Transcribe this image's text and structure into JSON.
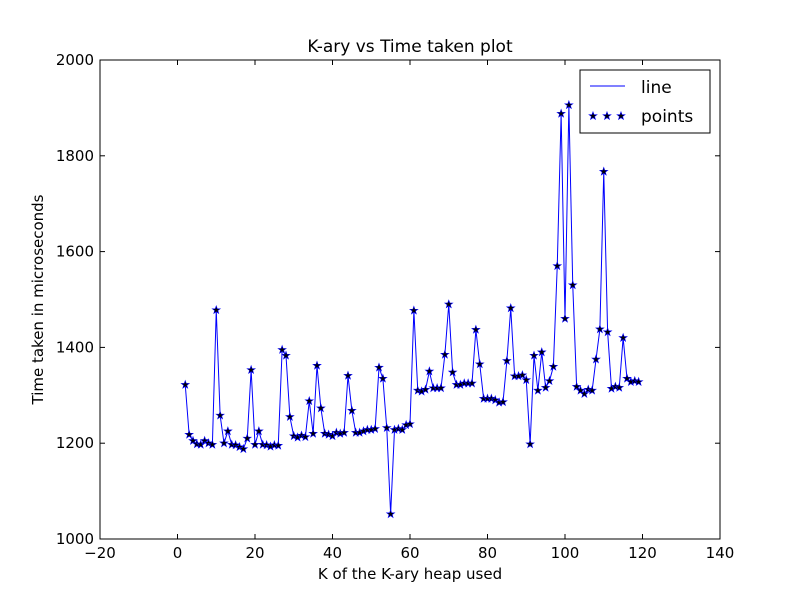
{
  "chart_data": {
    "type": "line",
    "title": "K-ary vs Time taken plot",
    "xlabel": "K of the K-ary heap used",
    "ylabel": "Time taken in microseconds",
    "xlim": [
      -20,
      140
    ],
    "ylim": [
      1000,
      2000
    ],
    "xticks": [
      "−20",
      "0",
      "20",
      "40",
      "60",
      "80",
      "100",
      "120",
      "140"
    ],
    "yticks": [
      "1000",
      "1200",
      "1400",
      "1600",
      "1800",
      "2000"
    ],
    "grid": false,
    "legend_position": "top-right",
    "legend": {
      "line": "line",
      "points": "points"
    },
    "line_color": "#0000ff",
    "marker_color": "#000000",
    "x": [
      2,
      3,
      4,
      5,
      6,
      7,
      8,
      9,
      10,
      11,
      12,
      13,
      14,
      15,
      16,
      17,
      18,
      19,
      20,
      21,
      22,
      23,
      24,
      25,
      26,
      27,
      28,
      29,
      30,
      31,
      32,
      33,
      34,
      35,
      36,
      37,
      38,
      39,
      40,
      41,
      42,
      43,
      44,
      45,
      46,
      47,
      48,
      49,
      50,
      51,
      52,
      53,
      54,
      55,
      56,
      57,
      58,
      59,
      60,
      61,
      62,
      63,
      64,
      65,
      66,
      67,
      68,
      69,
      70,
      71,
      72,
      73,
      74,
      75,
      76,
      77,
      78,
      79,
      80,
      81,
      82,
      83,
      84,
      85,
      86,
      87,
      88,
      89,
      90,
      91,
      92,
      93,
      94,
      95,
      96,
      97,
      98,
      99,
      100,
      101,
      102,
      103,
      104,
      105,
      106,
      107,
      108,
      109,
      110,
      111,
      112,
      113,
      114,
      115,
      116,
      117,
      118,
      119
    ],
    "y": [
      1322,
      1218,
      1205,
      1198,
      1197,
      1205,
      1200,
      1197,
      1478,
      1258,
      1200,
      1225,
      1197,
      1196,
      1192,
      1188,
      1210,
      1353,
      1197,
      1225,
      1197,
      1196,
      1193,
      1196,
      1195,
      1395,
      1383,
      1255,
      1215,
      1212,
      1216,
      1213,
      1288,
      1220,
      1362,
      1273,
      1220,
      1218,
      1215,
      1222,
      1220,
      1222,
      1341,
      1268,
      1222,
      1222,
      1225,
      1228,
      1228,
      1230,
      1358,
      1335,
      1232,
      1052,
      1228,
      1230,
      1228,
      1238,
      1240,
      1477,
      1310,
      1308,
      1312,
      1350,
      1315,
      1315,
      1315,
      1385,
      1490,
      1348,
      1322,
      1322,
      1325,
      1325,
      1325,
      1437,
      1365,
      1293,
      1293,
      1293,
      1290,
      1285,
      1286,
      1372,
      1482,
      1340,
      1340,
      1342,
      1332,
      1198,
      1383,
      1310,
      1390,
      1316,
      1330,
      1360,
      1570,
      1888,
      1460,
      1906,
      1530,
      1318,
      1310,
      1303,
      1312,
      1310,
      1375,
      1438,
      1767,
      1432,
      1314,
      1318,
      1316,
      1420,
      1335,
      1328,
      1330,
      1328
    ]
  }
}
